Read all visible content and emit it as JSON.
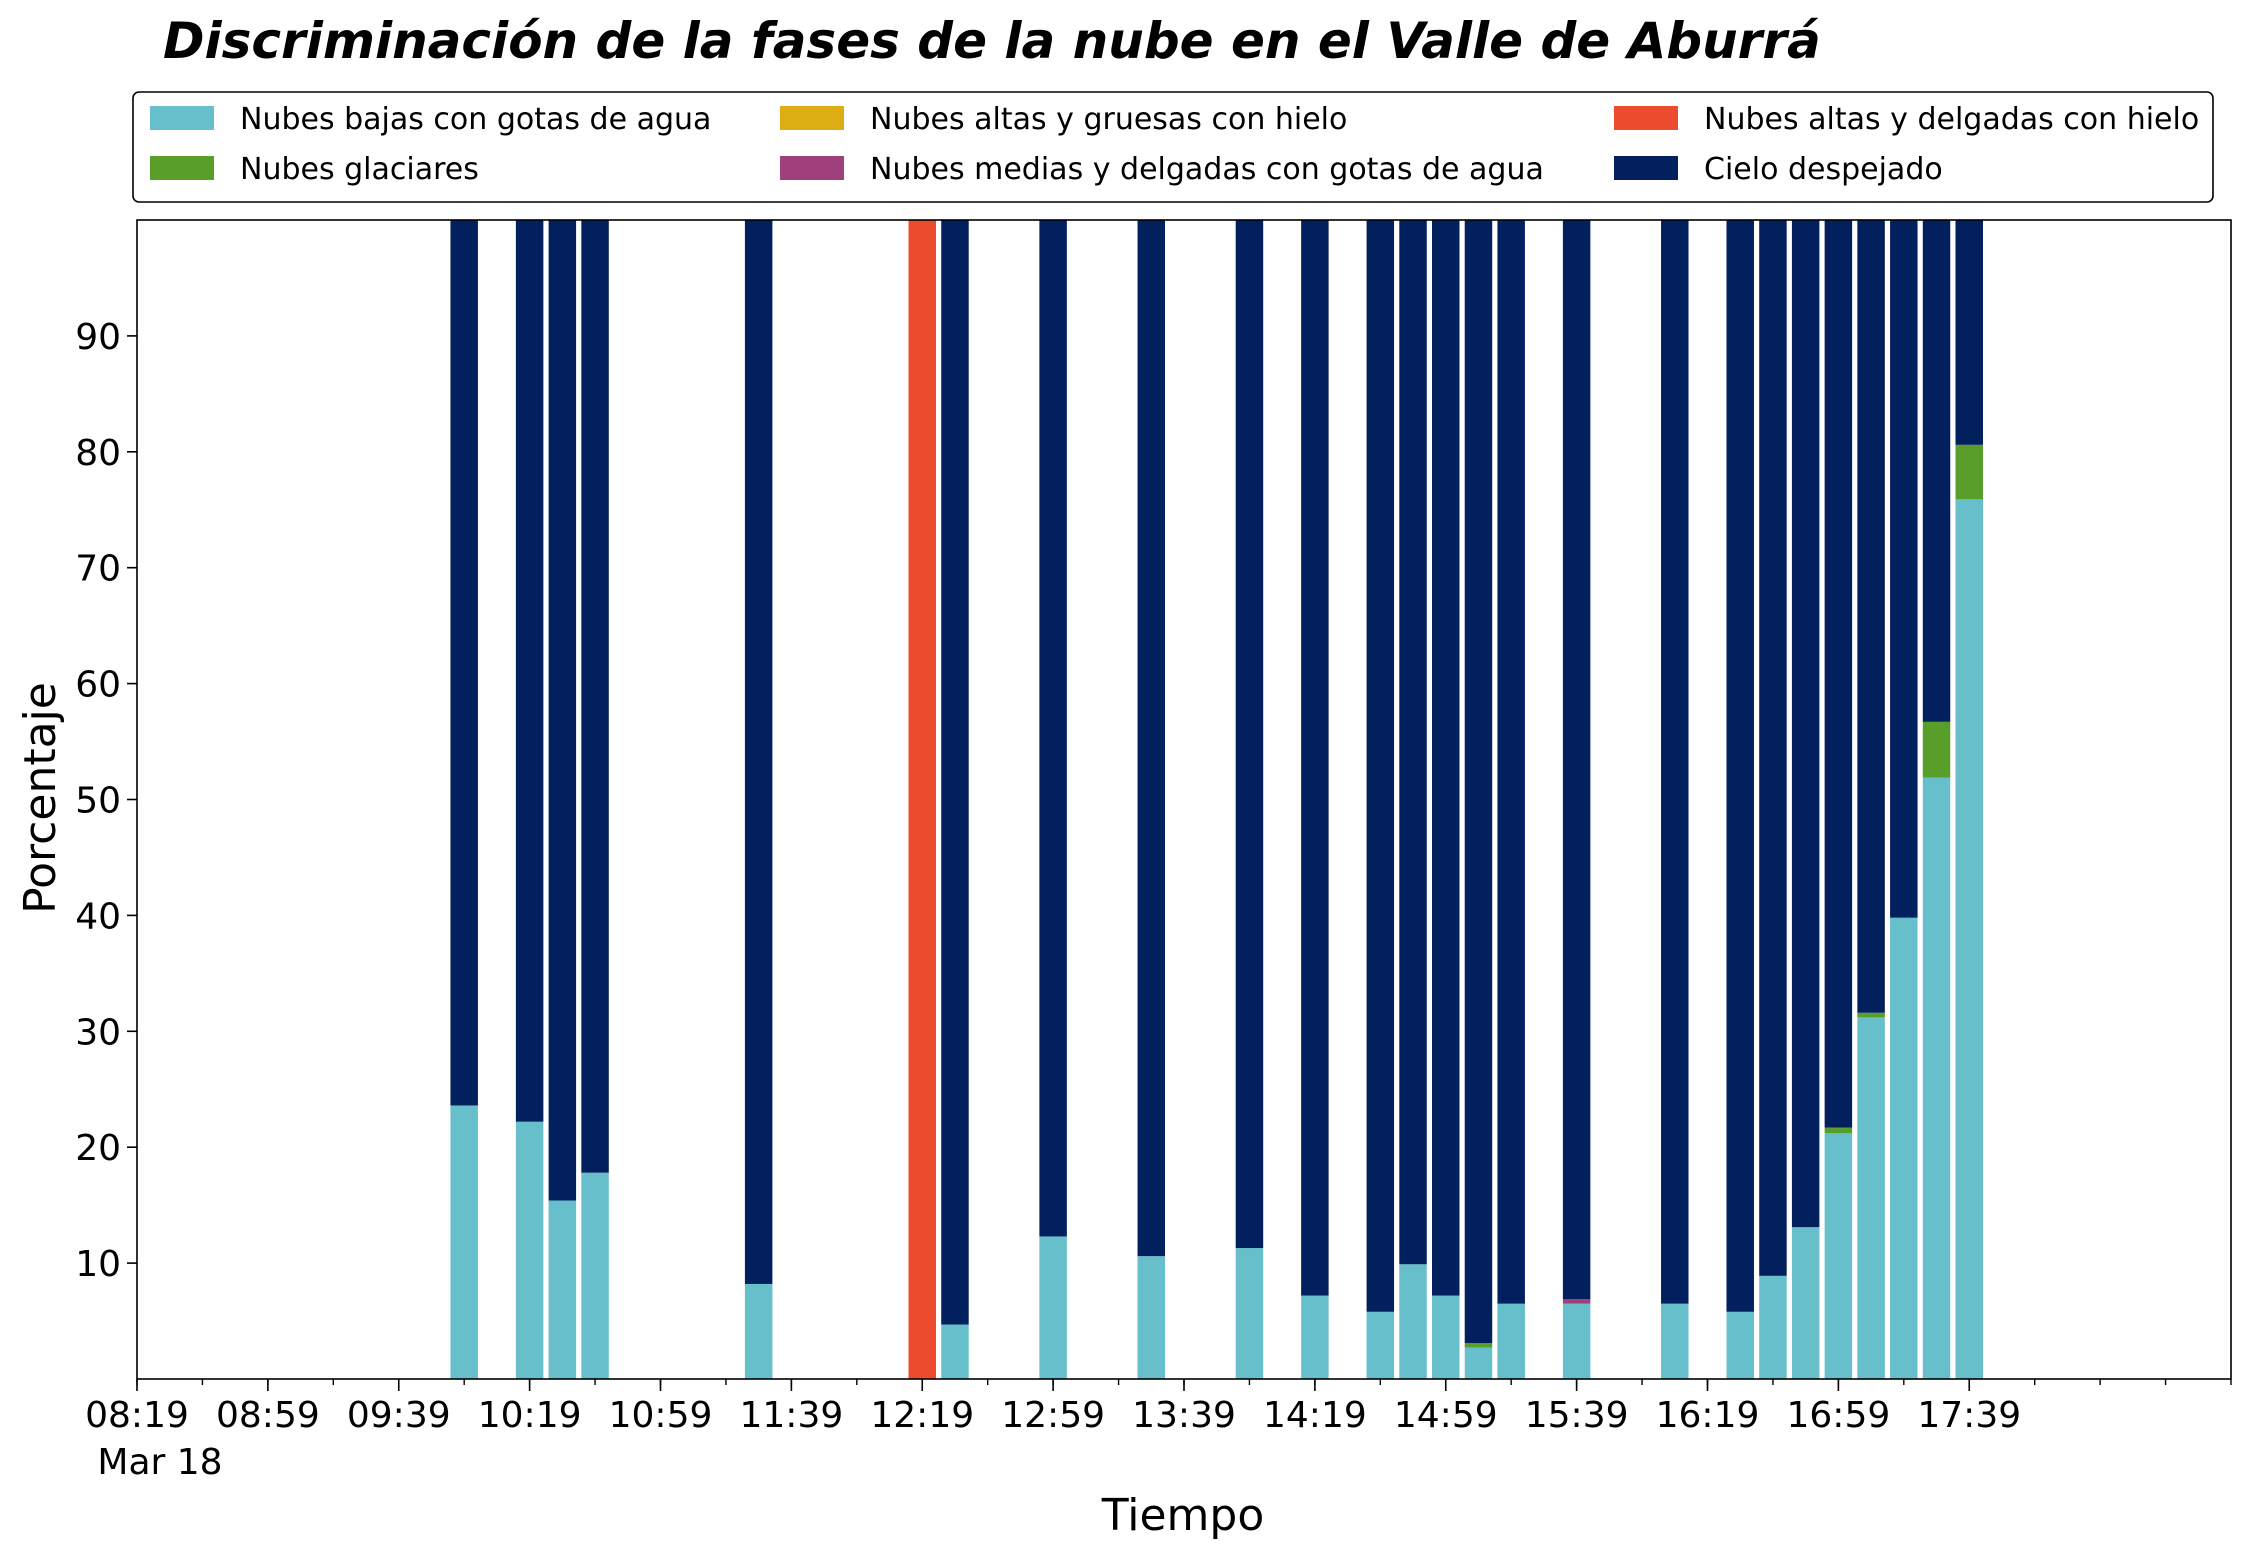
{
  "chart_data": {
    "type": "bar",
    "stacked": true,
    "title": "Discriminación de la fases de la nube en el Valle de Aburrá",
    "xlabel": "Tiempo",
    "ylabel": "Porcentaje",
    "ylim": [
      0,
      100
    ],
    "yticks": [
      10,
      20,
      30,
      40,
      50,
      60,
      70,
      80,
      90
    ],
    "xtick_labels": [
      "08:19",
      "08:59",
      "09:39",
      "10:19",
      "10:59",
      "11:39",
      "12:19",
      "12:59",
      "13:39",
      "14:19",
      "14:59",
      "15:39",
      "16:19",
      "16:59",
      "17:39"
    ],
    "date_label": "Mar 18",
    "legend_position": "top",
    "grid": false,
    "x": [
      "09:59",
      "10:19",
      "10:29",
      "10:39",
      "11:29",
      "12:19",
      "12:29",
      "12:59",
      "13:29",
      "13:59",
      "14:19",
      "14:39",
      "14:49",
      "14:59",
      "15:09",
      "15:19",
      "15:39",
      "16:09",
      "16:29",
      "16:39",
      "16:49",
      "16:59",
      "17:09",
      "17:19",
      "17:29",
      "17:39"
    ],
    "series": [
      {
        "name": "Nubes bajas con gotas de agua",
        "color": "#67bfcb",
        "values": [
          23.6,
          22.2,
          15.4,
          17.8,
          8.2,
          0,
          4.7,
          12.3,
          10.6,
          11.3,
          7.2,
          5.8,
          9.9,
          7.2,
          2.7,
          6.5,
          6.5,
          6.5,
          5.8,
          8.9,
          13.1,
          21.2,
          31.2,
          39.8,
          51.9,
          75.9
        ]
      },
      {
        "name": "Nubes glaciares",
        "color": "#5a9e2a",
        "values": [
          0,
          0,
          0,
          0,
          0,
          0,
          0,
          0,
          0,
          0,
          0,
          0,
          0,
          0,
          0.4,
          0,
          0,
          0,
          0,
          0,
          0,
          0.5,
          0.4,
          0,
          4.8,
          4.7
        ]
      },
      {
        "name": "Nubes altas y gruesas con hielo",
        "color": "#dcae13",
        "values": [
          0,
          0,
          0,
          0,
          0,
          0,
          0,
          0,
          0,
          0,
          0,
          0,
          0,
          0,
          0,
          0,
          0,
          0,
          0,
          0,
          0,
          0,
          0,
          0,
          0,
          0
        ]
      },
      {
        "name": "Nubes medias y delgadas con gotas de agua",
        "color": "#a0407a",
        "values": [
          0,
          0,
          0,
          0,
          0,
          0,
          0,
          0,
          0,
          0,
          0,
          0,
          0,
          0,
          0,
          0,
          0.4,
          0,
          0,
          0,
          0,
          0,
          0,
          0,
          0,
          0
        ]
      },
      {
        "name": "Nubes altas y delgadas con hielo",
        "color": "#ec4b2d",
        "values": [
          0,
          0,
          0,
          0,
          0,
          100,
          0,
          0,
          0,
          0,
          0,
          0,
          0,
          0,
          0,
          0,
          0,
          0,
          0,
          0,
          0,
          0,
          0,
          0,
          0,
          0
        ]
      },
      {
        "name": "Cielo despejado",
        "color": "#03205e",
        "values": [
          76.4,
          77.8,
          84.6,
          82.2,
          91.8,
          0,
          95.3,
          87.7,
          89.4,
          88.7,
          92.8,
          94.2,
          90.1,
          92.8,
          96.9,
          93.5,
          93.1,
          93.5,
          94.2,
          91.1,
          86.9,
          78.3,
          68.4,
          60.2,
          43.3,
          19.4
        ]
      }
    ]
  }
}
